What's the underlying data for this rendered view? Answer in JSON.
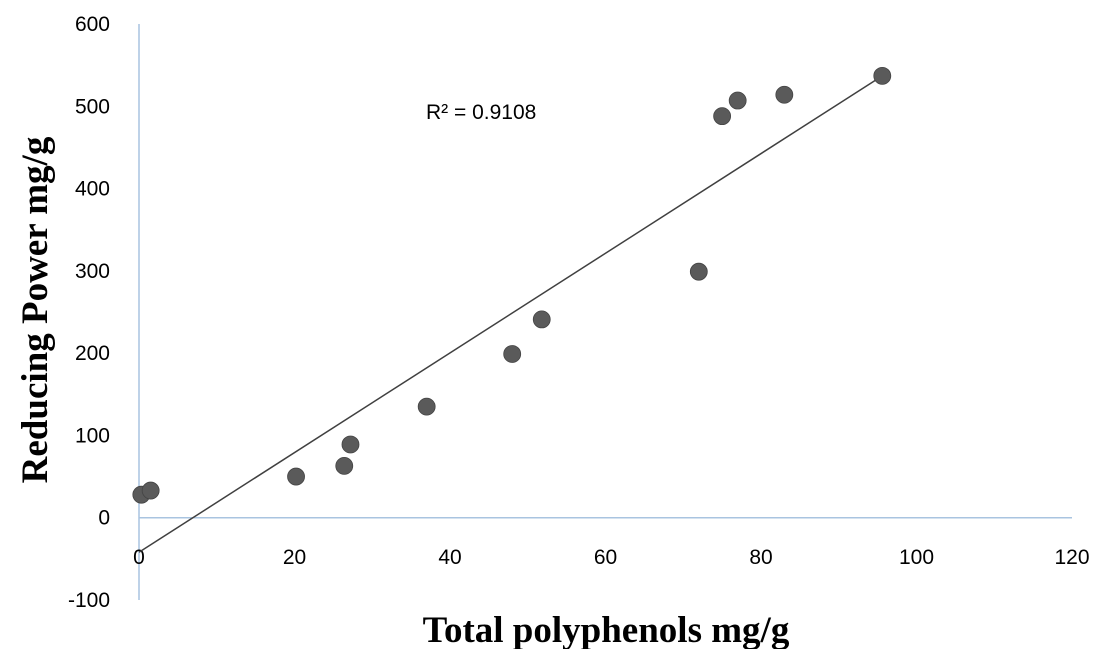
{
  "chart_data": {
    "type": "scatter",
    "title": "",
    "xlabel": "Total polyphenols mg/g",
    "ylabel": "Reducing Power mg/g",
    "xlim": [
      0,
      120
    ],
    "ylim": [
      -100,
      600
    ],
    "x_ticks": [
      "0",
      "20",
      "40",
      "60",
      "80",
      "100",
      "120"
    ],
    "y_ticks": [
      "-100",
      "0",
      "100",
      "200",
      "300",
      "400",
      "500",
      "600"
    ],
    "grid": false,
    "legend": "none",
    "series": [
      {
        "points": [
          {
            "x": 0.3,
            "y": 28
          },
          {
            "x": 1.5,
            "y": 33
          },
          {
            "x": 20.2,
            "y": 50
          },
          {
            "x": 26.4,
            "y": 63
          },
          {
            "x": 27.2,
            "y": 89
          },
          {
            "x": 37.0,
            "y": 135
          },
          {
            "x": 48.0,
            "y": 199
          },
          {
            "x": 51.8,
            "y": 241
          },
          {
            "x": 72.0,
            "y": 299
          },
          {
            "x": 75.0,
            "y": 488
          },
          {
            "x": 77.0,
            "y": 507
          },
          {
            "x": 83.0,
            "y": 514
          },
          {
            "x": 95.6,
            "y": 537
          }
        ],
        "marker_color": "#5a5a5a"
      }
    ],
    "trendline": {
      "type": "linear",
      "x_range": [
        0,
        95.6
      ],
      "y_start": -42,
      "y_end": 537,
      "color": "#404040"
    },
    "annotation": "R² = 0.9108",
    "axis_color": "#a9c4e0"
  }
}
